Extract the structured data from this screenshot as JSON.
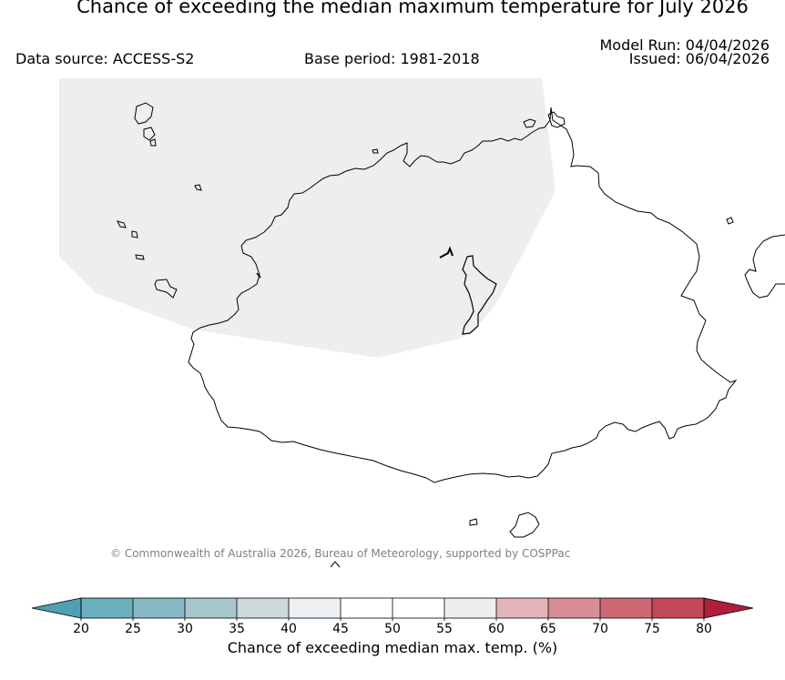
{
  "title": "Chance of exceeding the median maximum temperature for July 2026",
  "data_source": "Data source: ACCESS-S2",
  "base_period": "Base period: 1981-2018",
  "model_run": "Model Run: 04/04/2026",
  "issued": "Issued: 06/04/2026",
  "copyright": "© Commonwealth of Australia 2026, Bureau of Meteorology, supported by COSPPac",
  "map": {
    "shaded_region_category": "50-55",
    "shaded_region_color": "#efeeed",
    "land_color": "#ffffff",
    "coastline_color": "#000000"
  },
  "colorbar": {
    "label": "Chance of exceeding median max. temp. (%)",
    "ticks": [
      "20",
      "25",
      "30",
      "35",
      "40",
      "45",
      "50",
      "55",
      "60",
      "65",
      "70",
      "75",
      "80"
    ],
    "under_color": "#4fa0b0",
    "over_color": "#b01e3c",
    "colors": [
      "#6aafbd",
      "#86b8c4",
      "#a7c6cb",
      "#ccd8da",
      "#edf1f4",
      "#ffffff",
      "#ffffff",
      "#efeeed",
      "#e3b5ba",
      "#d88d96",
      "#cd6774",
      "#c24a58"
    ]
  }
}
